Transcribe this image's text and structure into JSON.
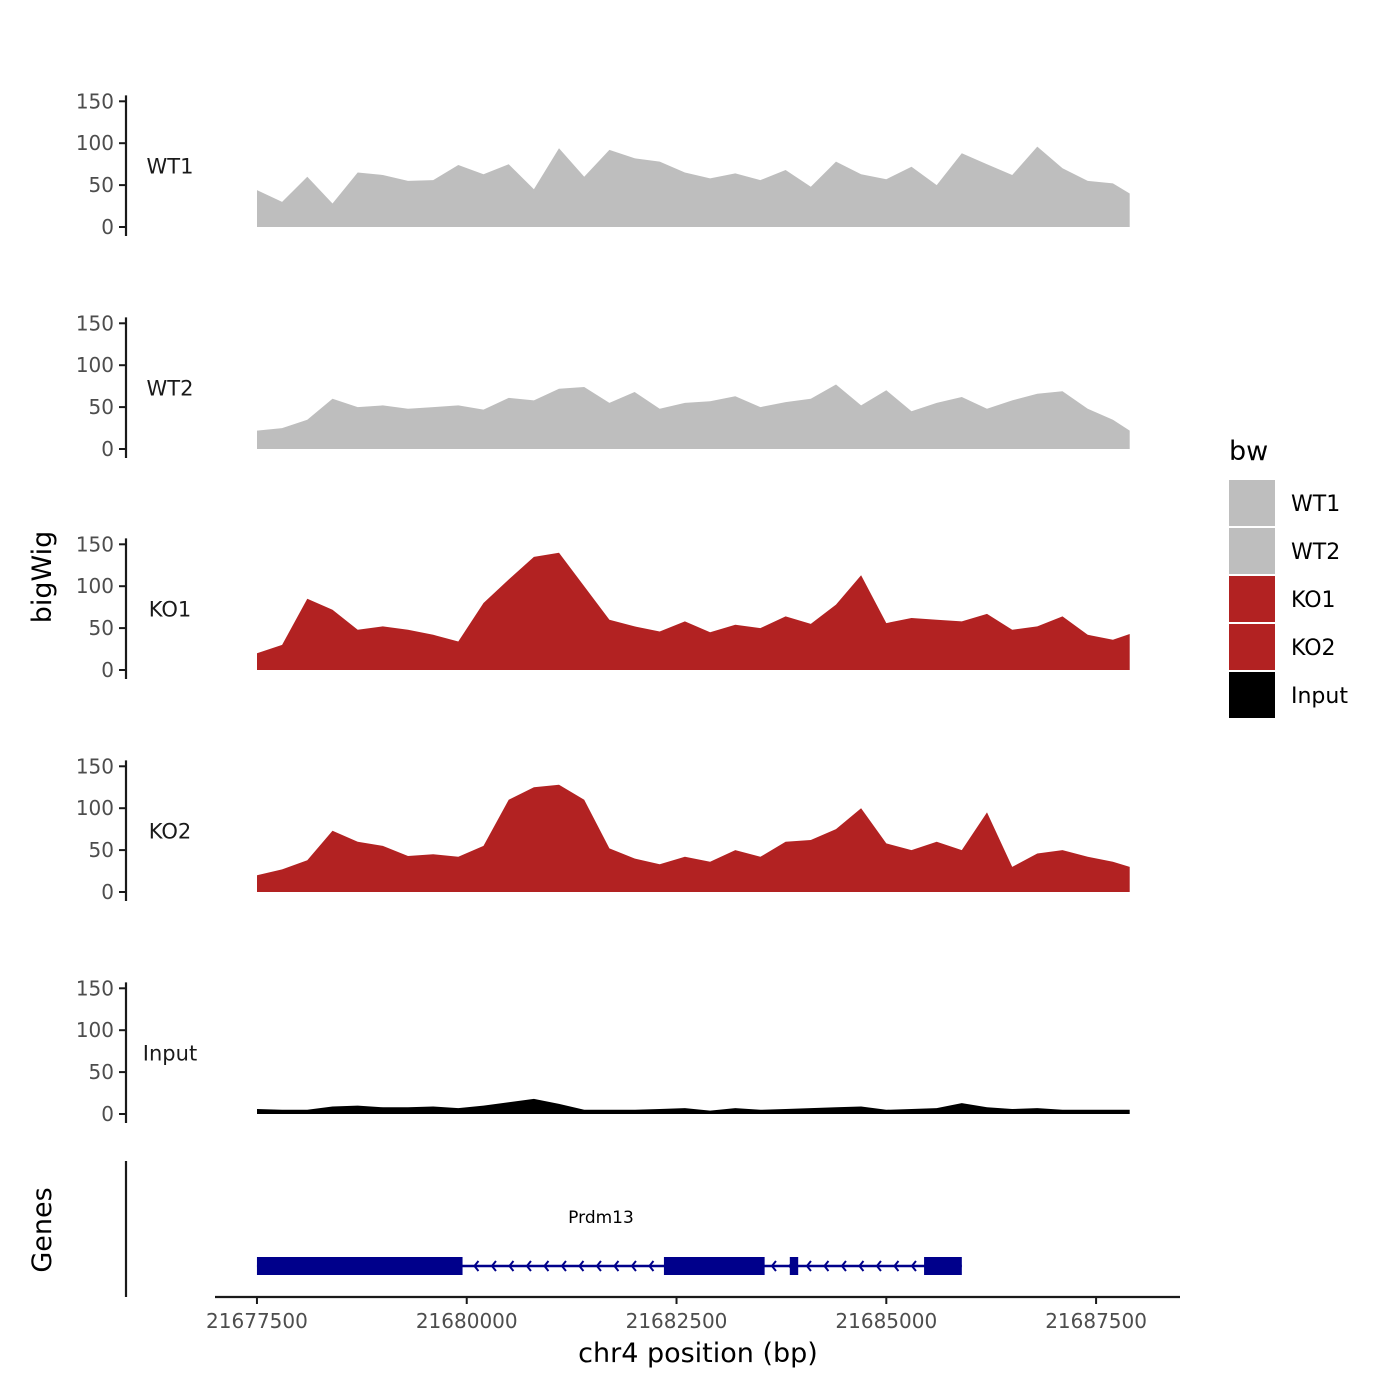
{
  "chart_data": {
    "type": "area",
    "chromosome": "chr4",
    "xlabel": "chr4 position (bp)",
    "ylabel": "bigWig",
    "genes_label": "Genes",
    "xlim": [
      21677000,
      21688500
    ],
    "x_ticks": [
      21677500,
      21680000,
      21682500,
      21685000,
      21687500
    ],
    "x_tick_labels": [
      "21677500",
      "21680000",
      "21682500",
      "21685000",
      "21687500"
    ],
    "ylim": [
      0,
      150
    ],
    "y_ticks": [
      0,
      50,
      100,
      150
    ],
    "y_tick_labels": [
      "0",
      "50",
      "100",
      "150"
    ],
    "grid": false,
    "legend": {
      "title": "bw",
      "position": "right",
      "items": [
        {
          "label": "WT1",
          "color": "#BEBEBE"
        },
        {
          "label": "WT2",
          "color": "#BEBEBE"
        },
        {
          "label": "KO1",
          "color": "#B22222"
        },
        {
          "label": "KO2",
          "color": "#B22222"
        },
        {
          "label": "Input",
          "color": "#000000"
        }
      ]
    },
    "x": [
      21677500,
      21677800,
      21678100,
      21678400,
      21678700,
      21679000,
      21679300,
      21679600,
      21679900,
      21680200,
      21680500,
      21680800,
      21681100,
      21681400,
      21681700,
      21682000,
      21682300,
      21682600,
      21682900,
      21683200,
      21683500,
      21683800,
      21684100,
      21684400,
      21684700,
      21685000,
      21685300,
      21685600,
      21685900,
      21686200,
      21686500,
      21686800,
      21687100,
      21687400,
      21687700,
      21687900
    ],
    "series": [
      {
        "name": "WT1",
        "color": "#BEBEBE",
        "values": [
          44,
          30,
          60,
          28,
          65,
          62,
          55,
          56,
          74,
          63,
          75,
          45,
          94,
          60,
          92,
          82,
          78,
          65,
          58,
          64,
          56,
          68,
          48,
          78,
          63,
          57,
          72,
          50,
          88,
          75,
          62,
          96,
          70,
          55,
          52,
          40
        ]
      },
      {
        "name": "WT2",
        "color": "#BEBEBE",
        "values": [
          22,
          25,
          35,
          60,
          50,
          52,
          48,
          50,
          52,
          47,
          61,
          58,
          72,
          74,
          55,
          68,
          48,
          55,
          57,
          63,
          50,
          56,
          60,
          77,
          52,
          70,
          45,
          55,
          62,
          48,
          58,
          66,
          69,
          48,
          35,
          22
        ]
      },
      {
        "name": "KO1",
        "color": "#B22222",
        "values": [
          20,
          30,
          85,
          72,
          48,
          52,
          48,
          42,
          34,
          80,
          108,
          135,
          140,
          100,
          60,
          52,
          46,
          58,
          45,
          54,
          50,
          64,
          55,
          78,
          113,
          56,
          62,
          60,
          58,
          67,
          48,
          52,
          64,
          42,
          36,
          43
        ]
      },
      {
        "name": "KO2",
        "color": "#B22222",
        "values": [
          20,
          27,
          38,
          73,
          60,
          55,
          43,
          45,
          42,
          55,
          110,
          125,
          128,
          110,
          52,
          40,
          33,
          42,
          36,
          50,
          42,
          60,
          62,
          75,
          100,
          58,
          50,
          60,
          50,
          95,
          30,
          46,
          50,
          42,
          36,
          30
        ]
      },
      {
        "name": "Input",
        "color": "#000000",
        "values": [
          6,
          5,
          5,
          9,
          10,
          8,
          8,
          9,
          7,
          10,
          14,
          18,
          12,
          5,
          5,
          5,
          6,
          7,
          4,
          7,
          5,
          6,
          7,
          8,
          9,
          5,
          6,
          7,
          13,
          8,
          6,
          7,
          5,
          5,
          5,
          5
        ]
      }
    ],
    "genes": [
      {
        "name": "Prdm13",
        "strand": "-",
        "start": 21677500,
        "end": 21685900,
        "color": "#00008B",
        "exons": [
          [
            21677500,
            21679950
          ],
          [
            21682350,
            21683550
          ],
          [
            21683850,
            21683950
          ],
          [
            21685450,
            21685900
          ]
        ]
      }
    ]
  }
}
